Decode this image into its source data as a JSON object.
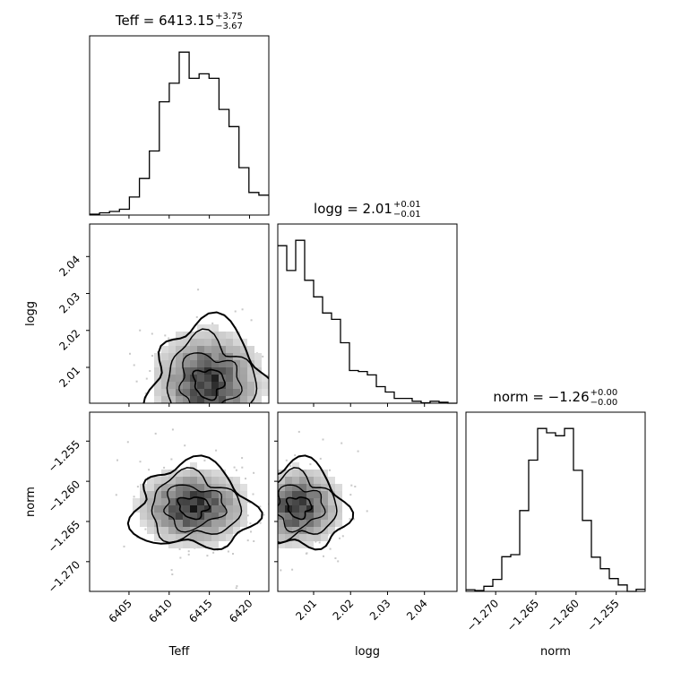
{
  "chart_data": {
    "type": "corner",
    "parameters": [
      "Teff",
      "logg",
      "norm"
    ],
    "titles": [
      {
        "base": "Teff = 6413.15",
        "plus": "+3.75",
        "minus": "−3.67"
      },
      {
        "base": "logg = 2.01",
        "plus": "+0.01",
        "minus": "−0.01"
      },
      {
        "base": "norm = −1.26",
        "plus": "+0.00",
        "minus": "−0.00"
      }
    ],
    "axes": {
      "Teff": {
        "label": "Teff",
        "range": [
          6400.1,
          6422.4
        ],
        "ticks": [
          6405,
          6410,
          6415,
          6420
        ],
        "tick_labels": [
          "6405",
          "6410",
          "6415",
          "6420"
        ]
      },
      "logg": {
        "label": "logg",
        "range": [
          2.0003,
          2.0488
        ],
        "ticks": [
          2.01,
          2.02,
          2.03,
          2.04
        ],
        "tick_labels": [
          "2.01",
          "2.02",
          "2.03",
          "2.04"
        ]
      },
      "norm": {
        "label": "norm",
        "range": [
          -1.2737,
          -1.2514
        ],
        "ticks": [
          -1.27,
          -1.265,
          -1.26,
          -1.255
        ],
        "tick_labels": [
          "−1.270",
          "−1.265",
          "−1.260",
          "−1.255"
        ]
      }
    },
    "histograms": [
      {
        "parameter": "Teff",
        "range": [
          6400.1,
          6422.4
        ],
        "counts": [
          2,
          5,
          8,
          13,
          40,
          81,
          142,
          251,
          292,
          361,
          303,
          313,
          303,
          234,
          196,
          105,
          50,
          44
        ]
      },
      {
        "parameter": "logg",
        "range": [
          2.0003,
          2.0488
        ],
        "counts": [
          323,
          272,
          334,
          252,
          218,
          185,
          172,
          124,
          67,
          65,
          58,
          34,
          23,
          10,
          10,
          4,
          1,
          4,
          2,
          0
        ]
      },
      {
        "parameter": "norm",
        "range": [
          -1.2737,
          -1.2514
        ],
        "counts": [
          4,
          2,
          12,
          28,
          81,
          86,
          189,
          307,
          381,
          371,
          364,
          381,
          283,
          166,
          80,
          53,
          30,
          15,
          0,
          5
        ]
      }
    ],
    "density_2d": [
      {
        "x": "Teff",
        "y": "logg",
        "peak": [
          6414.9,
          2.0057
        ],
        "spread": [
          3.5,
          0.0075
        ]
      },
      {
        "x": "Teff",
        "y": "norm",
        "peak": [
          6413.0,
          -1.2632
        ],
        "spread": [
          3.5,
          0.0025
        ]
      },
      {
        "x": "logg",
        "y": "norm",
        "peak": [
          2.006,
          -1.2632
        ],
        "spread": [
          0.006,
          0.0025
        ]
      }
    ],
    "grid": false,
    "legend": "none"
  }
}
